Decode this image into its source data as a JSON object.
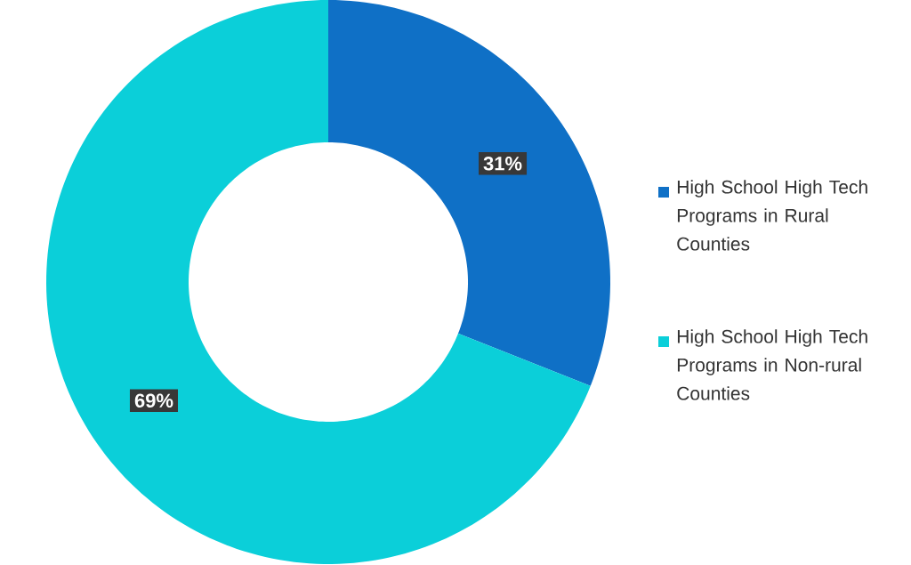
{
  "chart_data": {
    "type": "donut",
    "categories": [
      "High School High Tech Programs in Rural Counties",
      "High School High Tech Programs in Non-rural Counties"
    ],
    "values": [
      31,
      69
    ],
    "colors": [
      "#0f70c6",
      "#0bcfd9"
    ],
    "value_labels": [
      "31%",
      "69%"
    ],
    "legend": "right"
  }
}
